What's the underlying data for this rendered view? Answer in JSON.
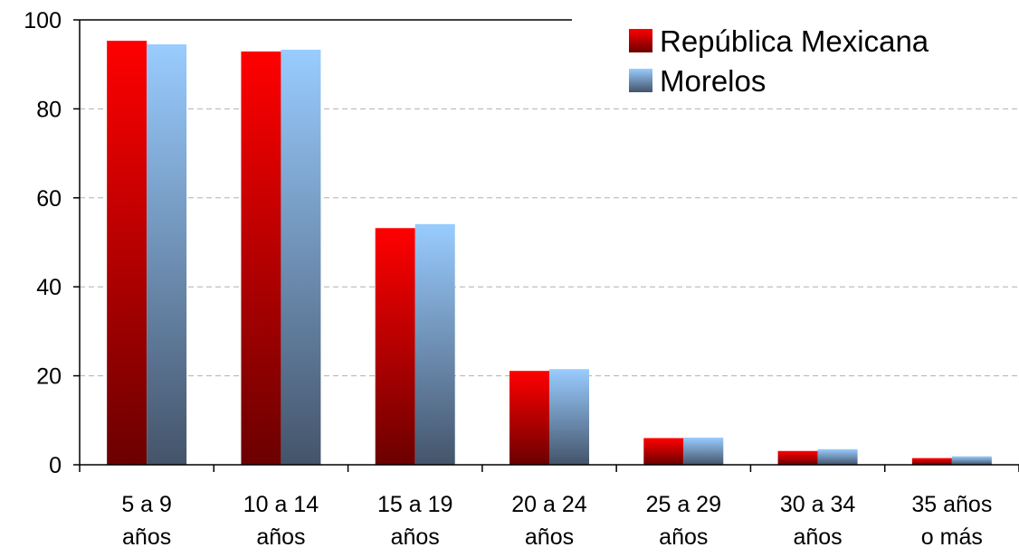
{
  "chart_data": {
    "type": "bar",
    "title": "",
    "xlabel": "",
    "ylabel": "",
    "categories": [
      [
        "5 a 9",
        "años"
      ],
      [
        "10 a 14",
        "años"
      ],
      [
        "15 a 19",
        "años"
      ],
      [
        "20 a 24",
        "años"
      ],
      [
        "25 a 29",
        "años"
      ],
      [
        "30 a 34",
        "años"
      ],
      [
        "35 años",
        "o más"
      ]
    ],
    "series": [
      {
        "name": "República Mexicana",
        "values": [
          95.3,
          92.9,
          53.2,
          21.1,
          6.0,
          3.1,
          1.5
        ]
      },
      {
        "name": "Morelos",
        "values": [
          94.5,
          93.3,
          54.1,
          21.5,
          6.1,
          3.5,
          1.9
        ]
      }
    ],
    "ylim": [
      0,
      100
    ],
    "yticks": [
      0,
      20,
      40,
      60,
      80,
      100
    ],
    "grid": true,
    "legend_position": "top-right",
    "colors": {
      "series1_top": "#ff0000",
      "series1_bottom": "#6b0000",
      "series2_top": "#99ccff",
      "series2_bottom": "#44546a",
      "grid": "#b0b0b0",
      "axis": "#000000"
    }
  }
}
